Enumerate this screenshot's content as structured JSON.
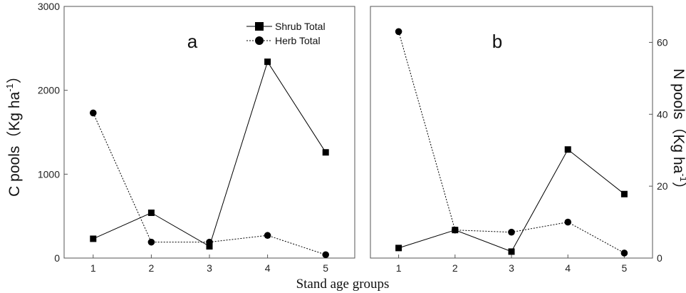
{
  "x_axis_title": "Stand age groups",
  "chart_data": [
    {
      "type": "line",
      "panel_label": "a",
      "ylabel": "C pools（Kg ha-1）",
      "ylabel_main": "C pools（Kg ha",
      "ylabel_sup": "-1",
      "ylabel_close": "）",
      "x": [
        1,
        2,
        3,
        4,
        5
      ],
      "xlim": [
        0.5,
        5.5
      ],
      "ylim": [
        0,
        3000
      ],
      "xticks": [
        "1",
        "2",
        "3",
        "4",
        "5"
      ],
      "yticks": [
        "0",
        "1000",
        "2000",
        "3000"
      ],
      "grid": false,
      "legend_position": "top-right",
      "series": [
        {
          "name": "Shrub Total",
          "marker": "square",
          "line_style": "solid",
          "values": [
            230,
            540,
            140,
            2340,
            1260
          ]
        },
        {
          "name": "Herb Total",
          "marker": "circle",
          "line_style": "dotted",
          "values": [
            1730,
            190,
            190,
            270,
            40
          ]
        }
      ]
    },
    {
      "type": "line",
      "panel_label": "b",
      "ylabel": "N pools（Kg ha-1）",
      "ylabel_main": "N pools（Kg ha",
      "ylabel_sup": "-1",
      "ylabel_close": "）",
      "x": [
        1,
        2,
        3,
        4,
        5
      ],
      "xlim": [
        0.5,
        5.5
      ],
      "ylim": [
        0,
        70
      ],
      "xticks": [
        "1",
        "2",
        "3",
        "4",
        "5"
      ],
      "yticks": [
        "0",
        "20",
        "40",
        "60"
      ],
      "grid": false,
      "series": [
        {
          "name": "Shrub Total",
          "marker": "square",
          "line_style": "solid",
          "values": [
            2.8,
            7.8,
            1.8,
            30.2,
            17.8
          ]
        },
        {
          "name": "Herb Total",
          "marker": "circle",
          "line_style": "dotted",
          "values": [
            63,
            7.8,
            7.2,
            10,
            1.4
          ]
        }
      ]
    }
  ]
}
